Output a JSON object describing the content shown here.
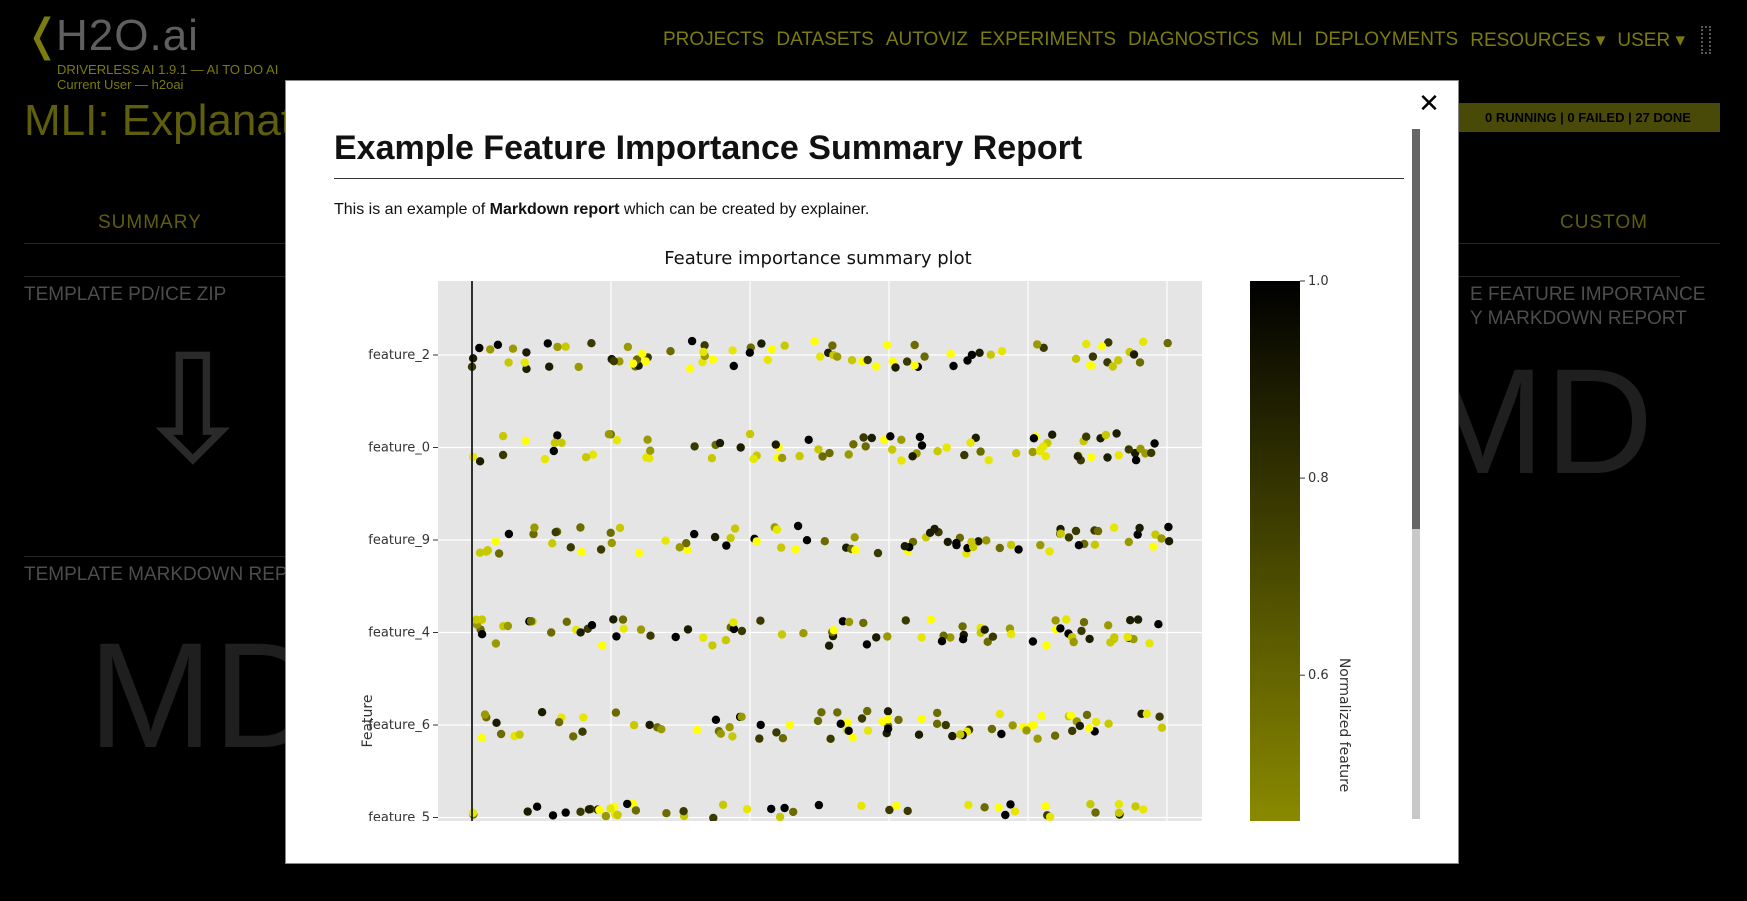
{
  "app": {
    "logo_chevron": "❬",
    "logo_text": "H2O.ai",
    "version_line": "DRIVERLESS AI 1.9.1 — AI TO DO AI",
    "user_line": "Current User — h2oai",
    "nav": [
      "PROJECTS",
      "DATASETS",
      "AUTOVIZ",
      "EXPERIMENTS",
      "DIAGNOSTICS",
      "MLI",
      "DEPLOYMENTS",
      "RESOURCES ▾",
      "USER ▾"
    ],
    "page_title": "MLI: Explanati",
    "status": "0 RUNNING | 0 FAILED | 27 DONE",
    "tabs": {
      "summary": "SUMMARY",
      "custom": "CUSTOM"
    },
    "cards": {
      "pdf_zip_title": "TEMPLATE PD/ICE ZIP",
      "markdown_title": "TEMPLATE MARKDOWN REPO",
      "right_title_1": "E FEATURE IMPORTANCE",
      "right_title_2": "Y MARKDOWN REPORT",
      "right_glyph": "MD",
      "bottom_glyph": "MD",
      "download_glyph": "⇩"
    }
  },
  "modal": {
    "close_label": "✕",
    "title": "Example Feature Importance Summary Report",
    "intro_prefix": "This is an example of ",
    "intro_bold": "Markdown report",
    "intro_suffix": " which can be created by explainer."
  },
  "chart_data": {
    "type": "scatter",
    "title": "Feature importance summary plot",
    "ylabel": "Feature",
    "colorbar_label": "Normalized feature",
    "colorbar_ticks": [
      "1.0",
      "0.8",
      "0.6"
    ],
    "colorbar_range": [
      0.45,
      1.0
    ],
    "categories": [
      "feature_2",
      "feature_0",
      "feature_9",
      "feature_4",
      "feature_6",
      "feature_5"
    ],
    "x_range": [
      -0.12,
      2.6
    ],
    "reference_line_x": 0,
    "points_per_feature": 85,
    "color_scale": {
      "low": "#ffff00",
      "mid": "#808000",
      "high": "#000000"
    },
    "grid": true
  }
}
